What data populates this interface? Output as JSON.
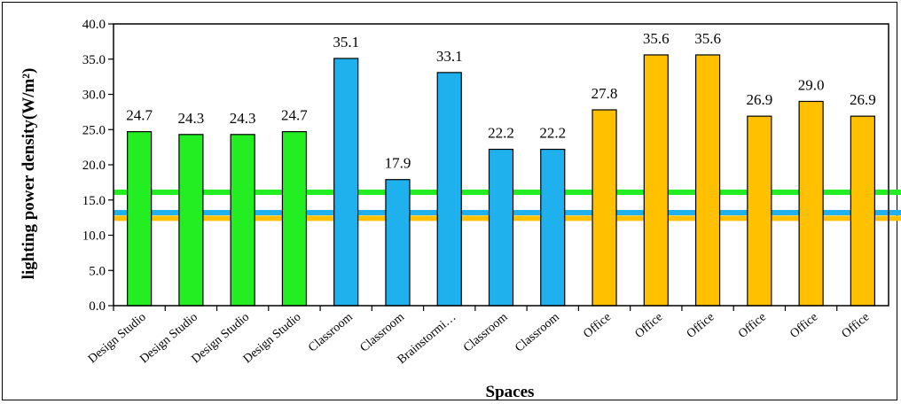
{
  "chart_data": {
    "type": "bar",
    "title": "",
    "xlabel": "Spaces",
    "ylabel": "lighting power density(W/m²)",
    "ylim": [
      0,
      40
    ],
    "yticks": [
      "0.0",
      "5.0",
      "10.0",
      "15.0",
      "20.0",
      "25.0",
      "30.0",
      "35.0",
      "40.0"
    ],
    "grid": false,
    "categories": [
      "Design Studio",
      "Design Studio",
      "Design Studio",
      "Design Studio",
      "Classroom",
      "Classroom",
      "Brainstormi…",
      "Classroom",
      "Classroom",
      "Office",
      "Office",
      "Office",
      "Office",
      "Office",
      "Office"
    ],
    "values": [
      24.7,
      24.3,
      24.3,
      24.7,
      35.1,
      17.9,
      33.1,
      22.2,
      22.2,
      27.8,
      35.6,
      35.6,
      26.9,
      29.0,
      26.9
    ],
    "data_labels": [
      "24.7",
      "24.3",
      "24.3",
      "24.7",
      "35.1",
      "17.9",
      "33.1",
      "22.2",
      "22.2",
      "27.8",
      "35.6",
      "35.6",
      "26.9",
      "29.0",
      "26.9"
    ],
    "bar_colors": [
      "#22ee22",
      "#22ee22",
      "#22ee22",
      "#22ee22",
      "#1fb0ee",
      "#1fb0ee",
      "#1fb0ee",
      "#1fb0ee",
      "#1fb0ee",
      "#ffc000",
      "#ffc000",
      "#ffc000",
      "#ffc000",
      "#ffc000",
      "#ffc000"
    ],
    "reference_lines": [
      {
        "value": 16.1,
        "color": "#22ee22"
      },
      {
        "value": 13.2,
        "color": "#1fb0ee"
      },
      {
        "value": 12.4,
        "color": "#ffc000"
      }
    ]
  }
}
